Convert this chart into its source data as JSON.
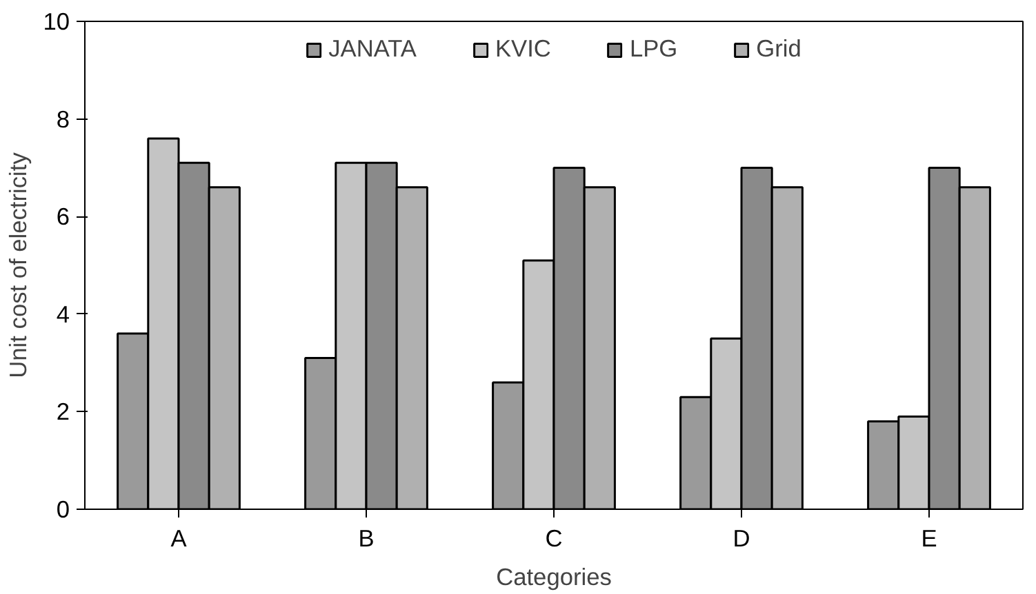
{
  "chart_data": {
    "type": "bar",
    "xlabel": "Categories",
    "ylabel": "Unit cost of electricity",
    "categories": [
      "A",
      "B",
      "C",
      "D",
      "E"
    ],
    "series": [
      {
        "name": "JANATA",
        "color": "#9a9a9a",
        "values": [
          3.6,
          3.1,
          2.6,
          2.3,
          1.8
        ]
      },
      {
        "name": "KVIC",
        "color": "#c4c4c4",
        "values": [
          7.6,
          7.1,
          5.1,
          3.5,
          1.9
        ]
      },
      {
        "name": "LPG",
        "color": "#8a8a8a",
        "values": [
          7.1,
          7.1,
          7.0,
          7.0,
          7.0
        ]
      },
      {
        "name": "Grid",
        "color": "#b0b0b0",
        "values": [
          6.6,
          6.6,
          6.6,
          6.6,
          6.6
        ]
      }
    ],
    "ylim": [
      0,
      10
    ],
    "yticks": [
      0,
      2,
      4,
      6,
      8,
      10
    ],
    "grid": false,
    "legend": "top"
  }
}
